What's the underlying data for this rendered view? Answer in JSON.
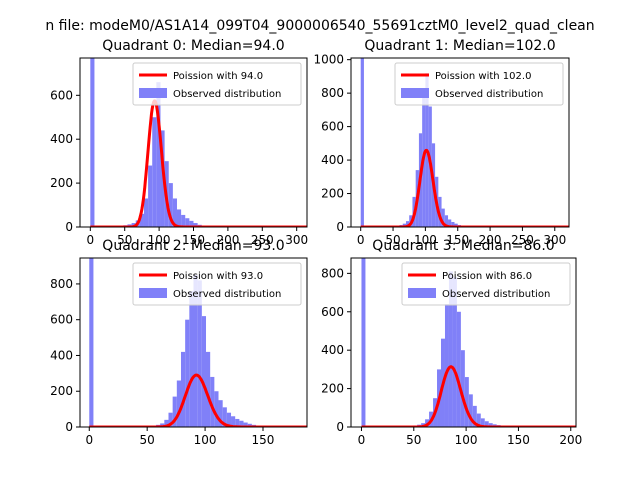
{
  "figure": {
    "suptitle": "n file: modeM0/AS1A14_099T04_9000006540_55691cztM0_level2_quad_clean"
  },
  "colors": {
    "hist": "#8080f8",
    "poisson": "#ff0000",
    "axes": "#000000"
  },
  "chart_data": [
    {
      "type": "bar",
      "title": "Quadrant 0: Median=94.0",
      "xlim": [
        -15,
        315
      ],
      "ylim": [
        0,
        770
      ],
      "xticks": [
        0,
        50,
        100,
        150,
        200,
        250,
        300
      ],
      "yticks": [
        0,
        200,
        400,
        600
      ],
      "bin_width": 6,
      "bins": [
        [
          0,
          770
        ],
        [
          6,
          0
        ],
        [
          12,
          3
        ],
        [
          18,
          3
        ],
        [
          24,
          3
        ],
        [
          30,
          5
        ],
        [
          36,
          5
        ],
        [
          42,
          5
        ],
        [
          48,
          8
        ],
        [
          54,
          12
        ],
        [
          60,
          18
        ],
        [
          66,
          30
        ],
        [
          72,
          60
        ],
        [
          78,
          130
        ],
        [
          84,
          280
        ],
        [
          90,
          500
        ],
        [
          96,
          660
        ],
        [
          102,
          440
        ],
        [
          108,
          300
        ],
        [
          114,
          200
        ],
        [
          120,
          130
        ],
        [
          126,
          80
        ],
        [
          132,
          55
        ],
        [
          138,
          40
        ],
        [
          144,
          28
        ],
        [
          150,
          18
        ],
        [
          156,
          10
        ],
        [
          162,
          6
        ],
        [
          168,
          4
        ],
        [
          174,
          3
        ],
        [
          180,
          2
        ],
        [
          186,
          2
        ],
        [
          192,
          1
        ],
        [
          198,
          1
        ],
        [
          204,
          1
        ],
        [
          210,
          1
        ],
        [
          216,
          1
        ],
        [
          222,
          1
        ],
        [
          228,
          1
        ],
        [
          234,
          1
        ],
        [
          240,
          1
        ],
        [
          246,
          1
        ],
        [
          252,
          1
        ],
        [
          258,
          1
        ],
        [
          264,
          1
        ],
        [
          270,
          1
        ],
        [
          276,
          1
        ],
        [
          282,
          1
        ],
        [
          288,
          1
        ],
        [
          294,
          1
        ],
        [
          300,
          1
        ]
      ],
      "series": [
        {
          "name": "Poission with 94.0",
          "lambda": 94.0,
          "scale": 2330
        },
        {
          "name": "Observed distribution"
        }
      ],
      "legend": "top-right"
    },
    {
      "type": "bar",
      "title": "Quadrant 1: Median=102.0",
      "xlim": [
        -15,
        322
      ],
      "ylim": [
        0,
        1010
      ],
      "xticks": [
        0,
        50,
        100,
        150,
        200,
        250,
        300
      ],
      "yticks": [
        0,
        200,
        400,
        600,
        800,
        1000
      ],
      "bin_width": 5,
      "bins": [
        [
          0,
          1010
        ],
        [
          5,
          0
        ],
        [
          10,
          2
        ],
        [
          15,
          2
        ],
        [
          20,
          2
        ],
        [
          25,
          3
        ],
        [
          30,
          3
        ],
        [
          35,
          3
        ],
        [
          40,
          4
        ],
        [
          45,
          5
        ],
        [
          50,
          6
        ],
        [
          55,
          8
        ],
        [
          60,
          12
        ],
        [
          65,
          20
        ],
        [
          70,
          35
        ],
        [
          75,
          70
        ],
        [
          80,
          180
        ],
        [
          85,
          340
        ],
        [
          90,
          560
        ],
        [
          95,
          780
        ],
        [
          100,
          920
        ],
        [
          105,
          720
        ],
        [
          110,
          500
        ],
        [
          115,
          300
        ],
        [
          120,
          180
        ],
        [
          125,
          110
        ],
        [
          130,
          70
        ],
        [
          135,
          45
        ],
        [
          140,
          30
        ],
        [
          145,
          20
        ],
        [
          150,
          12
        ],
        [
          155,
          8
        ],
        [
          160,
          5
        ],
        [
          165,
          4
        ],
        [
          170,
          3
        ],
        [
          175,
          3
        ],
        [
          180,
          2
        ],
        [
          185,
          2
        ],
        [
          190,
          2
        ],
        [
          195,
          2
        ],
        [
          200,
          1
        ],
        [
          205,
          1
        ],
        [
          210,
          1
        ],
        [
          215,
          1
        ],
        [
          220,
          1
        ],
        [
          225,
          1
        ],
        [
          230,
          1
        ],
        [
          235,
          1
        ],
        [
          240,
          1
        ],
        [
          245,
          1
        ],
        [
          250,
          1
        ],
        [
          255,
          1
        ],
        [
          260,
          1
        ],
        [
          265,
          1
        ],
        [
          270,
          1
        ],
        [
          275,
          1
        ],
        [
          280,
          1
        ],
        [
          285,
          1
        ],
        [
          290,
          1
        ],
        [
          295,
          1
        ],
        [
          300,
          1
        ],
        [
          305,
          1
        ]
      ],
      "series": [
        {
          "name": "Poission with 102.0",
          "lambda": 102.0,
          "scale": 2320
        },
        {
          "name": "Observed distribution"
        }
      ],
      "legend": "top-right"
    },
    {
      "type": "bar",
      "title": "Quadrant 2: Median=93.0",
      "xlim": [
        -8,
        188
      ],
      "ylim": [
        0,
        945
      ],
      "xticks": [
        0,
        50,
        100,
        150
      ],
      "yticks": [
        0,
        200,
        400,
        600,
        800
      ],
      "bin_width": 3.6,
      "bins": [
        [
          0,
          945
        ],
        [
          3.6,
          0
        ],
        [
          7.2,
          1
        ],
        [
          10.8,
          1
        ],
        [
          14.4,
          1
        ],
        [
          18,
          1
        ],
        [
          21.6,
          1
        ],
        [
          25.2,
          2
        ],
        [
          28.8,
          2
        ],
        [
          32.4,
          2
        ],
        [
          36,
          3
        ],
        [
          39.6,
          3
        ],
        [
          43.2,
          4
        ],
        [
          46.8,
          5
        ],
        [
          50.4,
          6
        ],
        [
          54,
          8
        ],
        [
          57.6,
          12
        ],
        [
          61.2,
          20
        ],
        [
          64.8,
          40
        ],
        [
          68.4,
          80
        ],
        [
          72,
          170
        ],
        [
          75.6,
          260
        ],
        [
          79.2,
          420
        ],
        [
          82.8,
          600
        ],
        [
          86.4,
          760
        ],
        [
          90,
          850
        ],
        [
          93.6,
          820
        ],
        [
          97.2,
          620
        ],
        [
          100.8,
          420
        ],
        [
          104.4,
          280
        ],
        [
          108,
          200
        ],
        [
          111.6,
          150
        ],
        [
          115.2,
          110
        ],
        [
          118.8,
          80
        ],
        [
          122.4,
          60
        ],
        [
          126,
          45
        ],
        [
          129.6,
          35
        ],
        [
          133.2,
          25
        ],
        [
          136.8,
          18
        ],
        [
          140.4,
          12
        ],
        [
          144,
          8
        ],
        [
          147.6,
          6
        ],
        [
          151.2,
          5
        ],
        [
          154.8,
          4
        ],
        [
          158.4,
          3
        ],
        [
          162,
          3
        ],
        [
          165.6,
          2
        ],
        [
          169.2,
          2
        ],
        [
          172.8,
          1
        ],
        [
          176.4,
          1
        ]
      ],
      "series": [
        {
          "name": "Poission with 93.0",
          "lambda": 93.0,
          "scale": 1950
        },
        {
          "name": "Observed distribution"
        }
      ],
      "legend": "top-right"
    },
    {
      "type": "bar",
      "title": "Quadrant 3: Median=86.0",
      "xlim": [
        -10,
        205
      ],
      "ylim": [
        0,
        880
      ],
      "xticks": [
        0,
        50,
        100,
        150,
        200
      ],
      "yticks": [
        0,
        200,
        400,
        600,
        800
      ],
      "bin_width": 3.8,
      "bins": [
        [
          0,
          880
        ],
        [
          3.8,
          0
        ],
        [
          7.6,
          1
        ],
        [
          11.4,
          1
        ],
        [
          15.2,
          1
        ],
        [
          19,
          1
        ],
        [
          22.8,
          1
        ],
        [
          26.6,
          2
        ],
        [
          30.4,
          2
        ],
        [
          34.2,
          2
        ],
        [
          38,
          3
        ],
        [
          41.8,
          4
        ],
        [
          45.6,
          5
        ],
        [
          49.4,
          8
        ],
        [
          53.2,
          12
        ],
        [
          57,
          20
        ],
        [
          60.8,
          40
        ],
        [
          64.6,
          80
        ],
        [
          68.4,
          150
        ],
        [
          72.2,
          300
        ],
        [
          76,
          460
        ],
        [
          79.8,
          640
        ],
        [
          83.6,
          810
        ],
        [
          87.4,
          780
        ],
        [
          91.2,
          600
        ],
        [
          95,
          400
        ],
        [
          98.8,
          260
        ],
        [
          102.6,
          170
        ],
        [
          106.4,
          110
        ],
        [
          110.2,
          70
        ],
        [
          114,
          45
        ],
        [
          117.8,
          30
        ],
        [
          121.6,
          20
        ],
        [
          125.4,
          14
        ],
        [
          129.2,
          10
        ],
        [
          133,
          7
        ],
        [
          136.8,
          5
        ],
        [
          140.6,
          4
        ],
        [
          144.4,
          3
        ],
        [
          148.2,
          3
        ],
        [
          152,
          2
        ],
        [
          155.8,
          2
        ],
        [
          159.6,
          2
        ],
        [
          163.4,
          1
        ],
        [
          167.2,
          1
        ],
        [
          171,
          1
        ],
        [
          174.8,
          1
        ],
        [
          178.6,
          1
        ],
        [
          182.4,
          1
        ],
        [
          186.2,
          1
        ]
      ],
      "series": [
        {
          "name": "Poission with 86.0",
          "lambda": 86.0,
          "scale": 1920
        },
        {
          "name": "Observed distribution"
        }
      ],
      "legend": "top-right"
    }
  ]
}
